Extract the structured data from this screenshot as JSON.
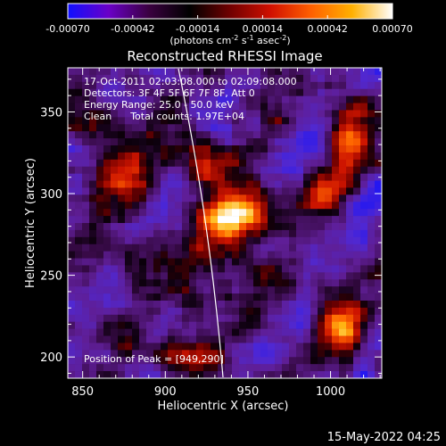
{
  "colorbar": {
    "ticks": [
      "-0.00070",
      "-0.00042",
      "-0.00014",
      "0.00014",
      "0.00042",
      "0.00070"
    ],
    "tick_values": [
      -0.0007,
      -0.00042,
      -0.00014,
      0.00014,
      0.00042,
      0.0007
    ],
    "range": [
      -0.0007,
      0.0007
    ],
    "unit_prefix": "(photons cm",
    "unit_exp1": "-2",
    "unit_mid": " s",
    "unit_exp2": "-1",
    "unit_mid2": " asec",
    "unit_exp3": "-2",
    "unit_suffix": ")",
    "colors": [
      "#1010ff",
      "#6a00c8",
      "#3a0040",
      "#000000",
      "#700000",
      "#d01000",
      "#ff6000",
      "#ffb000",
      "#ffffff"
    ]
  },
  "chart_data": {
    "type": "heatmap",
    "title": "Reconstructed RHESSI Image",
    "xlabel": "Heliocentric X (arcsec)",
    "ylabel": "Heliocentric Y (arcsec)",
    "x_ticks": [
      850,
      900,
      950,
      1000
    ],
    "y_ticks": [
      200,
      250,
      300,
      350
    ],
    "x_tick_labels": [
      "850",
      "900",
      "950",
      "1000"
    ],
    "y_tick_labels": [
      "200",
      "250",
      "300",
      "350"
    ],
    "xlim": [
      841,
      1031
    ],
    "ylim": [
      187,
      377
    ],
    "peak": [
      949,
      290
    ],
    "grid": false
  },
  "annotations": {
    "time_range": "17-Oct-2011 02:03:08.000 to 02:09:08.000",
    "detectors": "Detectors: 3F 4F 5F 6F 7F 8F, Att 0",
    "energy": "Energy Range: 25.0 - 50.0 keV",
    "clean": "Clean      Total counts: 1.97E+04",
    "peak_label": "Position of Peak = [949,290]"
  },
  "footer": {
    "timestamp": "15-May-2022 04:25"
  }
}
